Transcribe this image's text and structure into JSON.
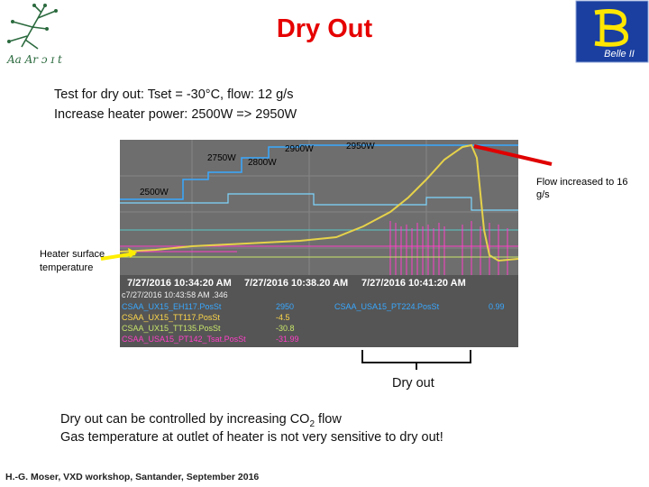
{
  "title": "Dry Out",
  "subtitle": {
    "line1": "Test for dry out: Tset = -30°C, flow: 12 g/s",
    "line2": "Increase heater power: 2500W => 2950W"
  },
  "logos": {
    "left_text": "Aa Ar ɔ̃ ɪ t",
    "right_text": "Belle II"
  },
  "chart_data": {
    "type": "line",
    "title": "",
    "xlabel": "",
    "ylabel": "",
    "time_ticks": [
      "7/27/2016 10:34:20 AM",
      "7/27/2016 10:38.20 AM",
      "7/27/2016 10:41:20 AM"
    ],
    "cursor_time": "c7/27/2016 10:43:58 AM .346",
    "legend": [
      {
        "name": "CSAA_UX15_EH117.PosSt",
        "value": "2950",
        "color": "#39a8ff"
      },
      {
        "name": "CSAA_UX15_TT117.PosSt",
        "value": "-4.5",
        "color": "#ffd84a"
      },
      {
        "name": "CSAA_UX15_TT135.PosSt",
        "value": "-30.8",
        "color": "#c8e66a"
      },
      {
        "name": "CSAA_USA15_PT142_Tsat.PosSt",
        "value": "-31.99",
        "color": "#ff3fc8"
      },
      {
        "name": "CSAA_USA15_PT224.PosSt",
        "value": "0.99",
        "color": "#39a8ff"
      }
    ],
    "power_steps_W": [
      {
        "label": "2500W",
        "value": 2500
      },
      {
        "label": "2750W",
        "value": 2750
      },
      {
        "label": "2800W",
        "value": 2800
      },
      {
        "label": "2900W",
        "value": 2900
      },
      {
        "label": "2950W",
        "value": 2950
      }
    ],
    "grid": true,
    "legend_placement": "bottom"
  },
  "annotations": {
    "flow_increased": "Flow increased to 16 g/s",
    "heater_surface": "Heater surface temperature",
    "dry_out": "Dry out"
  },
  "notes": {
    "line1_pre": "Dry out can be controlled by increasing CO",
    "line1_sub": "2",
    "line1_post": " flow",
    "line2": "Gas temperature at outlet of heater is not very sensitive to dry out!"
  },
  "footer": "H.-G. Moser,  VXD workshop, Santander, September 2016",
  "colors": {
    "title": "#e60000",
    "plot_bg": "#6e6e6e",
    "arrow_red": "#e00000",
    "arrow_yellow": "#ffee00"
  }
}
